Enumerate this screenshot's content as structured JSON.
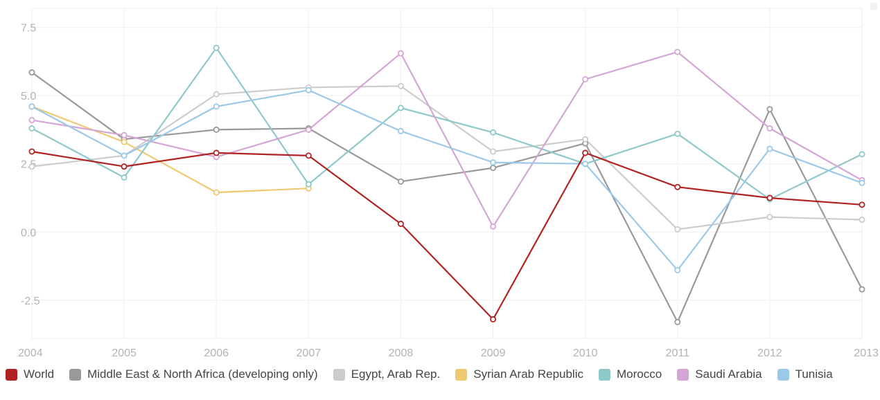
{
  "chart_data": {
    "type": "line",
    "title": "",
    "xlabel": "",
    "ylabel": "",
    "x": [
      "2004",
      "2005",
      "2006",
      "2007",
      "2008",
      "2009",
      "2010",
      "2011",
      "2012",
      "2013"
    ],
    "ylim": [
      -3.9,
      8.2
    ],
    "yticks": [
      7.5,
      5.0,
      2.5,
      0.0,
      -2.5
    ],
    "ytick_labels": [
      "7.5",
      "5.0",
      "2.5",
      "0.0",
      "-2.5"
    ],
    "grid": true,
    "legend_position": "bottom",
    "series": [
      {
        "name": "World",
        "color": "#b22222",
        "values": [
          2.95,
          2.4,
          2.9,
          2.8,
          0.3,
          -3.2,
          2.9,
          1.65,
          1.25,
          1.0
        ]
      },
      {
        "name": "Middle East & North Africa (developing only)",
        "color": "#999999",
        "values": [
          5.85,
          3.4,
          3.75,
          3.8,
          1.85,
          2.35,
          3.25,
          -3.3,
          4.5,
          -2.1
        ]
      },
      {
        "name": "Egypt, Arab Rep.",
        "color": "#cccccc",
        "values": [
          2.4,
          2.8,
          5.05,
          5.3,
          5.35,
          2.95,
          3.4,
          0.1,
          0.55,
          0.45
        ]
      },
      {
        "name": "Syrian Arab Republic",
        "color": "#f0c870",
        "values": [
          4.6,
          3.3,
          1.45,
          1.6,
          null,
          null,
          null,
          null,
          null,
          null
        ]
      },
      {
        "name": "Morocco",
        "color": "#8ec9c9",
        "values": [
          3.8,
          2.0,
          6.75,
          1.75,
          4.55,
          3.65,
          2.5,
          3.6,
          1.2,
          2.85
        ]
      },
      {
        "name": "Saudi Arabia",
        "color": "#d5a5d5",
        "values": [
          4.1,
          3.55,
          2.75,
          3.75,
          6.55,
          0.2,
          5.6,
          6.6,
          3.8,
          1.9
        ]
      },
      {
        "name": "Tunisia",
        "color": "#9cc9e8",
        "values": [
          4.6,
          2.8,
          4.6,
          5.2,
          3.7,
          2.55,
          2.5,
          -1.4,
          3.05,
          1.8
        ]
      }
    ]
  }
}
